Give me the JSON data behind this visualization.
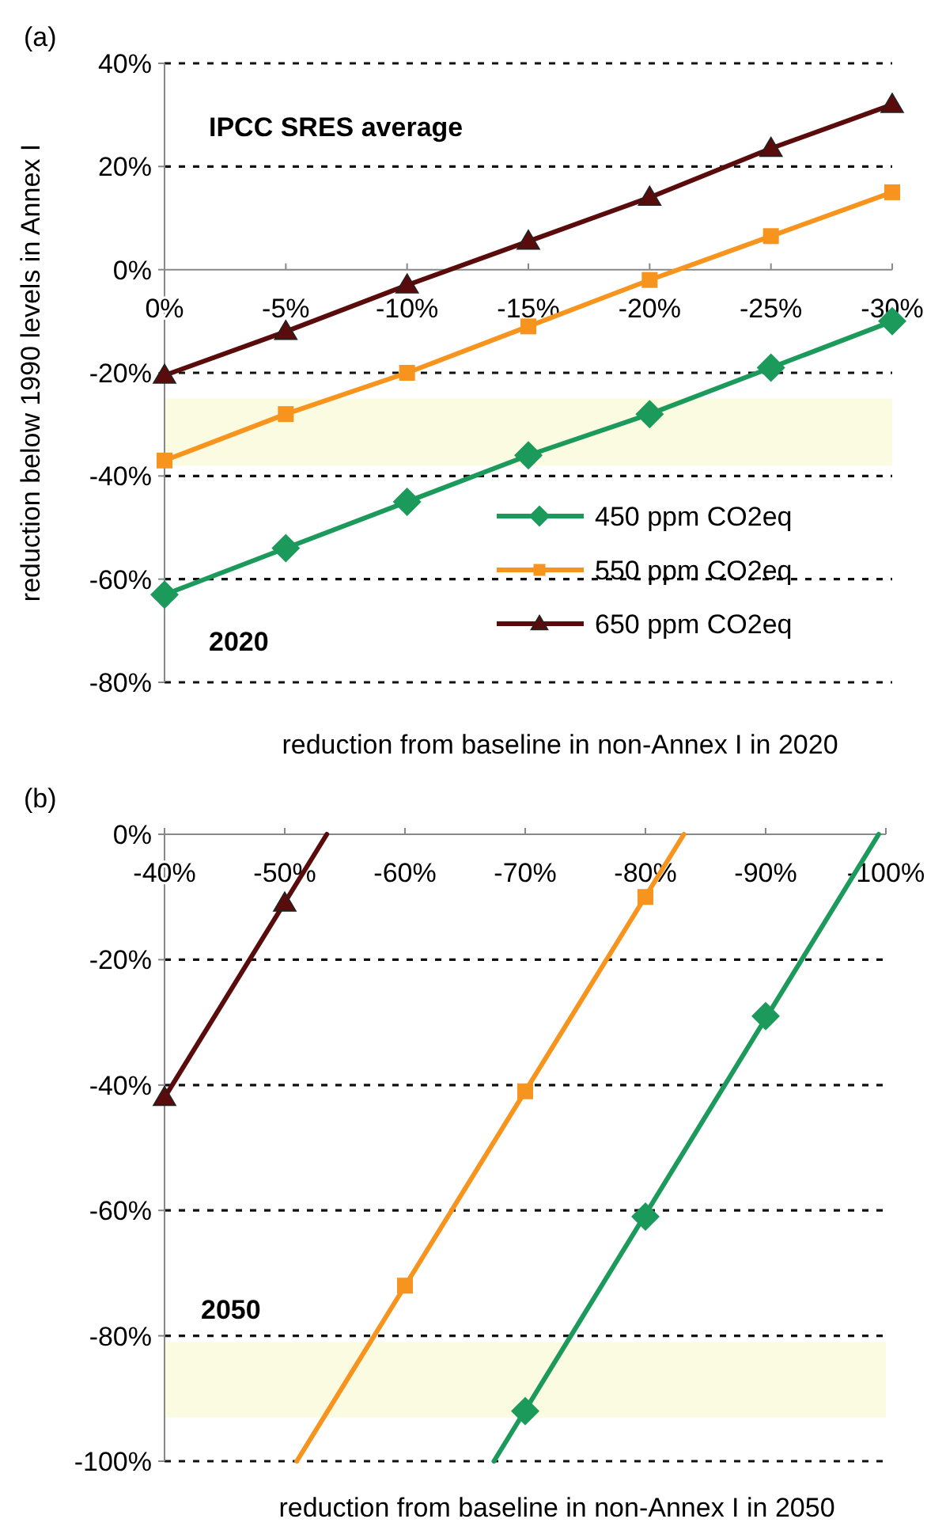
{
  "chart_data": [
    {
      "type": "line",
      "title": "(a)",
      "xlabel": "reduction from baseline in non-Annex I in 2020",
      "ylabel": "reduction below 1990 levels in Annex I",
      "categories": [
        "0%",
        "-5%",
        "-10%",
        "-15%",
        "-20%",
        "-25%",
        "-30%"
      ],
      "series": [
        {
          "name": "450 ppm CO2eq",
          "color": "#1b9a5c",
          "marker": "diamond",
          "values": [
            -63,
            -54,
            -45,
            -36,
            -28,
            -19,
            -10
          ]
        },
        {
          "name": "550 ppm CO2eq",
          "color": "#f7941d",
          "marker": "square",
          "values": [
            -37,
            -28,
            -20,
            -11,
            -2,
            6.5,
            15
          ]
        },
        {
          "name": "650 ppm CO2eq",
          "color": "#5a0c0c",
          "marker": "triangle",
          "values": [
            -20.5,
            -12,
            -3,
            5.5,
            14,
            23.5,
            32
          ]
        }
      ],
      "ylim": [
        -80,
        40
      ],
      "yticks": [
        {
          "value": -80,
          "label": "-80%"
        },
        {
          "value": -60,
          "label": "-60%"
        },
        {
          "value": -40,
          "label": "-40%"
        },
        {
          "value": -20,
          "label": "-20%"
        },
        {
          "value": 0,
          "label": "0%"
        },
        {
          "value": 20,
          "label": "20%"
        },
        {
          "value": 40,
          "label": "40%"
        }
      ],
      "bands": [
        {
          "axis": "y",
          "from": -25,
          "to": -38,
          "color": "#fbfbe2"
        }
      ],
      "annotations": [
        "IPCC SRES average",
        "2020"
      ],
      "grid": "y",
      "legend": "bottom right",
      "line_style": "solid"
    },
    {
      "type": "line",
      "title": "(b)",
      "xlabel": "reduction from baseline in non-Annex I in 2050",
      "series": [
        {
          "color": "#5a0c0c",
          "marker": "none",
          "x": [
            -40,
            -53.5
          ],
          "values": [
            -42,
            0
          ]
        },
        {
          "type": "scatter",
          "color": "#5a0c0c",
          "marker": "triangle",
          "x": [
            -40,
            -50
          ],
          "values": [
            -42,
            -11
          ]
        },
        {
          "color": "#f7941d",
          "marker": "none",
          "x": [
            -51,
            -83.2
          ],
          "values": [
            -100,
            0
          ]
        },
        {
          "type": "scatter",
          "color": "#f7941d",
          "marker": "square",
          "x": [
            -60,
            -70,
            -80
          ],
          "values": [
            -72,
            -41,
            -10
          ]
        },
        {
          "color": "#1b9a5c",
          "marker": "none",
          "x": [
            -67.4,
            -99.4
          ],
          "values": [
            -100,
            0
          ]
        },
        {
          "type": "scatter",
          "color": "#1b9a5c",
          "marker": "diamond",
          "x": [
            -70,
            -80,
            -90
          ],
          "values": [
            -92,
            -61,
            -29
          ]
        }
      ],
      "xlim": [
        -40,
        -100
      ],
      "xticks": [
        {
          "value": -40,
          "label": "-40%"
        },
        {
          "value": -50,
          "label": "-50%"
        },
        {
          "value": -60,
          "label": "-60%"
        },
        {
          "value": -70,
          "label": "-70%"
        },
        {
          "value": -80,
          "label": "-80%"
        },
        {
          "value": -90,
          "label": "-90%"
        },
        {
          "value": -100,
          "label": "-100%"
        }
      ],
      "ylim": [
        -100,
        0
      ],
      "yticks": [
        {
          "value": -100,
          "label": "-100%"
        },
        {
          "value": -80,
          "label": "-80%"
        },
        {
          "value": -60,
          "label": "-60%"
        },
        {
          "value": -40,
          "label": "-40%"
        },
        {
          "value": -20,
          "label": "-20%"
        },
        {
          "value": 0,
          "label": "0%"
        }
      ],
      "bands": [
        {
          "axis": "y",
          "from": -81,
          "to": -93,
          "color": "#fbfbe2"
        }
      ],
      "annotations": [
        "2050"
      ],
      "grid": "y",
      "line_style": "solid"
    }
  ]
}
